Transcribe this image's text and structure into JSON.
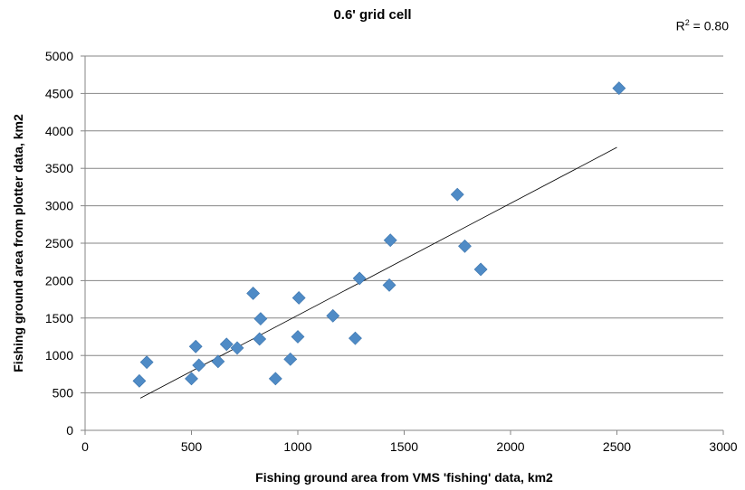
{
  "chart_data": {
    "type": "scatter",
    "title": "0.6' grid cell",
    "xlabel": "Fishing ground area from VMS 'fishing' data, km2",
    "ylabel": "Fishing ground area from plotter data, km2",
    "annotation": {
      "r2_prefix": "R",
      "r2_sup": "2",
      "r2_rest": " = 0.80"
    },
    "xlim": [
      0,
      3000
    ],
    "ylim": [
      0,
      5000
    ],
    "xticks": [
      0,
      500,
      1000,
      1500,
      2000,
      2500,
      3000
    ],
    "yticks": [
      0,
      500,
      1000,
      1500,
      2000,
      2500,
      3000,
      3500,
      4000,
      4500,
      5000
    ],
    "grid": true,
    "points": [
      [
        255,
        660
      ],
      [
        290,
        910
      ],
      [
        500,
        690
      ],
      [
        520,
        1120
      ],
      [
        535,
        870
      ],
      [
        625,
        920
      ],
      [
        665,
        1150
      ],
      [
        715,
        1100
      ],
      [
        790,
        1830
      ],
      [
        820,
        1220
      ],
      [
        825,
        1490
      ],
      [
        895,
        690
      ],
      [
        965,
        950
      ],
      [
        1000,
        1250
      ],
      [
        1005,
        1770
      ],
      [
        1165,
        1530
      ],
      [
        1270,
        1230
      ],
      [
        1290,
        2030
      ],
      [
        1430,
        1940
      ],
      [
        1435,
        2540
      ],
      [
        1750,
        3150
      ],
      [
        1785,
        2460
      ],
      [
        1860,
        2150
      ],
      [
        2510,
        4570
      ]
    ],
    "trendline": {
      "x": [
        260,
        2500
      ],
      "y": [
        430,
        3780
      ]
    },
    "marker_color": "#4f8bc6",
    "line_color": "#000000",
    "grid_color": "#868686"
  }
}
